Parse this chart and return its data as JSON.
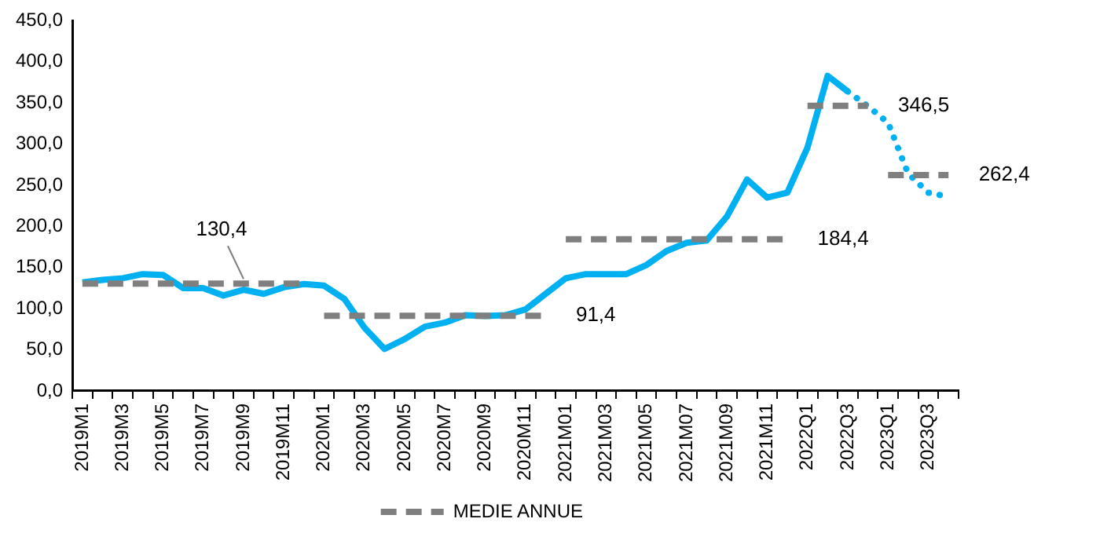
{
  "chart_data": {
    "type": "line",
    "categories": [
      "2019M1",
      null,
      "2019M3",
      null,
      "2019M5",
      null,
      "2019M7",
      null,
      "2019M9",
      null,
      "2019M11",
      null,
      "2020M1",
      null,
      "2020M3",
      null,
      "2020M5",
      null,
      "2020M7",
      null,
      "2020M9",
      null,
      "2020M11",
      null,
      "2021M01",
      null,
      "2021M03",
      null,
      "2021M05",
      null,
      "2021M07",
      null,
      "2021M09",
      null,
      "2021M11",
      null,
      "2022Q1",
      null,
      "2022Q3",
      null,
      "2023Q1",
      null,
      "2023Q3",
      null
    ],
    "series": [
      {
        "color": "#00b0f0",
        "line_style": "solid",
        "values": [
          132,
          135,
          137,
          142,
          141,
          125,
          125,
          116,
          123,
          118,
          126,
          130,
          128,
          112,
          77,
          51,
          63,
          78,
          83,
          92,
          91,
          92,
          99,
          118,
          137,
          142,
          142,
          142,
          153,
          170,
          180,
          183,
          212,
          257,
          235,
          241,
          296,
          383,
          364,
          null,
          null,
          null,
          null,
          null
        ]
      },
      {
        "color": "#00b0f0",
        "line_style": "dotted",
        "values": [
          null,
          null,
          null,
          null,
          null,
          null,
          null,
          null,
          null,
          null,
          null,
          null,
          null,
          null,
          null,
          null,
          null,
          null,
          null,
          null,
          null,
          null,
          null,
          null,
          null,
          null,
          null,
          null,
          null,
          null,
          null,
          null,
          null,
          null,
          null,
          null,
          null,
          null,
          364,
          346,
          326,
          264,
          241,
          236
        ]
      },
      {
        "name": "MEDIE ANNUE",
        "color": "#7f7f7f",
        "line_style": "dashed",
        "values": [
          130.4,
          130.4,
          130.4,
          130.4,
          130.4,
          130.4,
          130.4,
          130.4,
          130.4,
          130.4,
          130.4,
          130.4,
          null,
          null,
          null,
          null,
          null,
          null,
          null,
          null,
          null,
          null,
          null,
          null,
          null,
          null,
          null,
          null,
          null,
          null,
          null,
          null,
          null,
          null,
          null,
          null,
          null,
          null,
          null,
          null,
          null,
          null,
          null,
          null
        ]
      },
      {
        "color": "#7f7f7f",
        "line_style": "dashed",
        "values": [
          null,
          null,
          null,
          null,
          null,
          null,
          null,
          null,
          null,
          null,
          null,
          null,
          91.4,
          91.4,
          91.4,
          91.4,
          91.4,
          91.4,
          91.4,
          91.4,
          91.4,
          91.4,
          91.4,
          91.4,
          null,
          null,
          null,
          null,
          null,
          null,
          null,
          null,
          null,
          null,
          null,
          null,
          null,
          null,
          null,
          null,
          null,
          null,
          null,
          null
        ]
      },
      {
        "color": "#7f7f7f",
        "line_style": "dashed",
        "values": [
          null,
          null,
          null,
          null,
          null,
          null,
          null,
          null,
          null,
          null,
          null,
          null,
          null,
          null,
          null,
          null,
          null,
          null,
          null,
          null,
          null,
          null,
          null,
          null,
          184.4,
          184.4,
          184.4,
          184.4,
          184.4,
          184.4,
          184.4,
          184.4,
          184.4,
          184.4,
          184.4,
          184.4,
          null,
          null,
          null,
          null,
          null,
          null,
          null,
          null
        ]
      },
      {
        "color": "#7f7f7f",
        "line_style": "dashed",
        "values": [
          null,
          null,
          null,
          null,
          null,
          null,
          null,
          null,
          null,
          null,
          null,
          null,
          null,
          null,
          null,
          null,
          null,
          null,
          null,
          null,
          null,
          null,
          null,
          null,
          null,
          null,
          null,
          null,
          null,
          null,
          null,
          null,
          null,
          null,
          null,
          null,
          346.5,
          346.5,
          346.5,
          346.5,
          null,
          null,
          null,
          null
        ]
      },
      {
        "color": "#7f7f7f",
        "line_style": "dashed",
        "values": [
          null,
          null,
          null,
          null,
          null,
          null,
          null,
          null,
          null,
          null,
          null,
          null,
          null,
          null,
          null,
          null,
          null,
          null,
          null,
          null,
          null,
          null,
          null,
          null,
          null,
          null,
          null,
          null,
          null,
          null,
          null,
          null,
          null,
          null,
          null,
          null,
          null,
          null,
          null,
          null,
          262.4,
          262.4,
          262.4,
          262.4
        ]
      }
    ],
    "ylim": [
      0,
      450
    ],
    "yticks": [
      {
        "value": 0,
        "label": "0,0"
      },
      {
        "value": 50,
        "label": "50,0"
      },
      {
        "value": 100,
        "label": "100,0"
      },
      {
        "value": 150,
        "label": "150,0"
      },
      {
        "value": 200,
        "label": "200,0"
      },
      {
        "value": 250,
        "label": "250,0"
      },
      {
        "value": 300,
        "label": "300,0"
      },
      {
        "value": 350,
        "label": "350,0"
      },
      {
        "value": 400,
        "label": "400,0"
      },
      {
        "value": 450,
        "label": "450,0"
      }
    ],
    "grid": false,
    "legend": "bottom",
    "annotations": [
      {
        "text": "130,4",
        "x": "2019M9",
        "y": 130.4
      },
      {
        "text": "91,4",
        "x": "2020M11",
        "y": 91.4
      },
      {
        "text": "184,4",
        "x": "2021M11",
        "y": 184.4
      },
      {
        "text": "346,5",
        "x": "2022Q3",
        "y": 346.5
      },
      {
        "text": "262,4",
        "x": "2023Q3",
        "y": 262.4
      }
    ]
  }
}
